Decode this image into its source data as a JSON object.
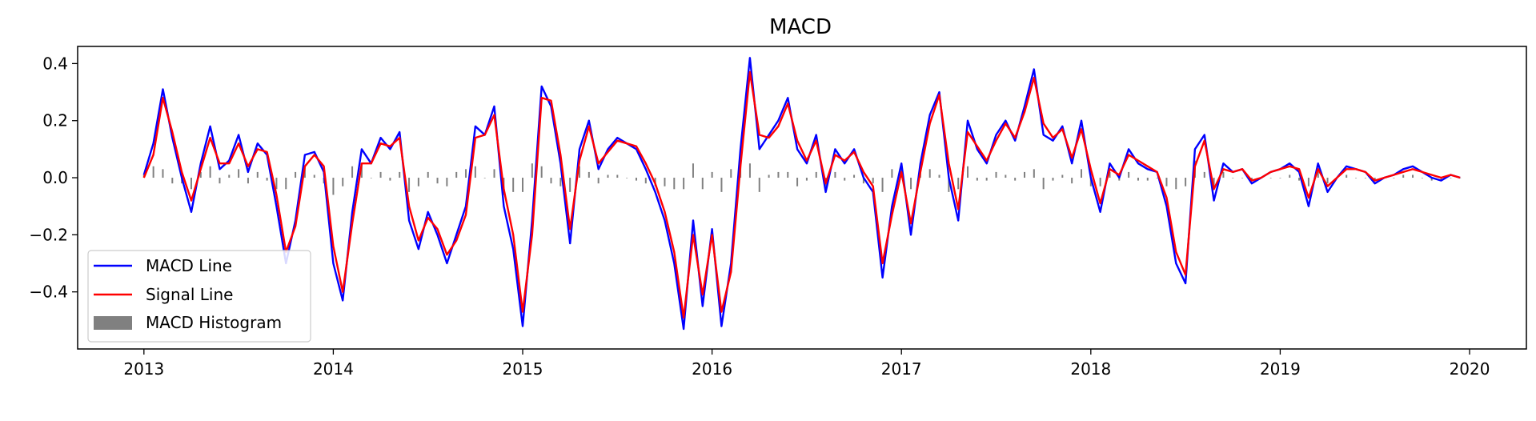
{
  "chart_data": {
    "type": "line",
    "title": "MACD",
    "xlabel": "",
    "ylabel": "",
    "xlim": [
      2012.65,
      2020.3
    ],
    "ylim": [
      -0.6,
      0.46
    ],
    "xticks": [
      2013,
      2014,
      2015,
      2016,
      2017,
      2018,
      2019,
      2020
    ],
    "xtick_labels": [
      "2013",
      "2014",
      "2015",
      "2016",
      "2017",
      "2018",
      "2019",
      "2020"
    ],
    "yticks": [
      -0.4,
      -0.2,
      0.0,
      0.2,
      0.4
    ],
    "ytick_labels": [
      "−0.4",
      "−0.2",
      "0.0",
      "0.2",
      "0.4"
    ],
    "grid": false,
    "legend": {
      "placement": "lower-left"
    },
    "x": [
      2013.0,
      2013.05,
      2013.1,
      2013.15,
      2013.2,
      2013.25,
      2013.3,
      2013.35,
      2013.4,
      2013.45,
      2013.5,
      2013.55,
      2013.6,
      2013.65,
      2013.7,
      2013.75,
      2013.8,
      2013.85,
      2013.9,
      2013.95,
      2014.0,
      2014.05,
      2014.1,
      2014.15,
      2014.2,
      2014.25,
      2014.3,
      2014.35,
      2014.4,
      2014.45,
      2014.5,
      2014.55,
      2014.6,
      2014.65,
      2014.7,
      2014.75,
      2014.8,
      2014.85,
      2014.9,
      2014.95,
      2015.0,
      2015.05,
      2015.1,
      2015.15,
      2015.2,
      2015.25,
      2015.3,
      2015.35,
      2015.4,
      2015.45,
      2015.5,
      2015.55,
      2015.6,
      2015.65,
      2015.7,
      2015.75,
      2015.8,
      2015.85,
      2015.9,
      2015.95,
      2016.0,
      2016.05,
      2016.1,
      2016.15,
      2016.2,
      2016.25,
      2016.3,
      2016.35,
      2016.4,
      2016.45,
      2016.5,
      2016.55,
      2016.6,
      2016.65,
      2016.7,
      2016.75,
      2016.8,
      2016.85,
      2016.9,
      2016.95,
      2017.0,
      2017.05,
      2017.1,
      2017.15,
      2017.2,
      2017.25,
      2017.3,
      2017.35,
      2017.4,
      2017.45,
      2017.5,
      2017.55,
      2017.6,
      2017.65,
      2017.7,
      2017.75,
      2017.8,
      2017.85,
      2017.9,
      2017.95,
      2018.0,
      2018.05,
      2018.1,
      2018.15,
      2018.2,
      2018.25,
      2018.3,
      2018.35,
      2018.4,
      2018.45,
      2018.5,
      2018.55,
      2018.6,
      2018.65,
      2018.7,
      2018.75,
      2018.8,
      2018.85,
      2018.9,
      2018.95,
      2019.0,
      2019.05,
      2019.1,
      2019.15,
      2019.2,
      2019.25,
      2019.3,
      2019.35,
      2019.4,
      2019.45,
      2019.5,
      2019.55,
      2019.6,
      2019.65,
      2019.7,
      2019.75,
      2019.8,
      2019.85,
      2019.9,
      2019.95
    ],
    "series": [
      {
        "name": "MACD Line",
        "color": "#0000ff",
        "values": [
          0.01,
          0.12,
          0.31,
          0.14,
          0.0,
          -0.12,
          0.05,
          0.18,
          0.03,
          0.06,
          0.15,
          0.02,
          0.12,
          0.08,
          -0.1,
          -0.3,
          -0.15,
          0.08,
          0.09,
          0.02,
          -0.3,
          -0.43,
          -0.12,
          0.1,
          0.05,
          0.14,
          0.1,
          0.16,
          -0.15,
          -0.25,
          -0.12,
          -0.2,
          -0.3,
          -0.2,
          -0.1,
          0.18,
          0.15,
          0.25,
          -0.1,
          -0.25,
          -0.52,
          -0.15,
          0.32,
          0.25,
          0.05,
          -0.23,
          0.1,
          0.2,
          0.03,
          0.1,
          0.14,
          0.12,
          0.1,
          0.03,
          -0.05,
          -0.15,
          -0.3,
          -0.53,
          -0.15,
          -0.45,
          -0.18,
          -0.52,
          -0.3,
          0.1,
          0.42,
          0.1,
          0.15,
          0.2,
          0.28,
          0.1,
          0.05,
          0.15,
          -0.05,
          0.1,
          0.05,
          0.1,
          0.0,
          -0.05,
          -0.35,
          -0.1,
          0.05,
          -0.2,
          0.05,
          0.22,
          0.3,
          0.0,
          -0.15,
          0.2,
          0.1,
          0.05,
          0.15,
          0.2,
          0.13,
          0.25,
          0.38,
          0.15,
          0.13,
          0.18,
          0.05,
          0.2,
          0.0,
          -0.12,
          0.05,
          0.0,
          0.1,
          0.05,
          0.03,
          0.02,
          -0.1,
          -0.3,
          -0.37,
          0.1,
          0.15,
          -0.08,
          0.05,
          0.02,
          0.03,
          -0.02,
          0.0,
          0.02,
          0.03,
          0.05,
          0.02,
          -0.1,
          0.05,
          -0.05,
          0.0,
          0.04,
          0.03,
          0.02,
          -0.02,
          0.0,
          0.01,
          0.03,
          0.04,
          0.02,
          0.0,
          -0.01,
          0.01,
          0.0
        ]
      },
      {
        "name": "Signal Line",
        "color": "#ff0000",
        "values": [
          0.0,
          0.08,
          0.28,
          0.16,
          0.02,
          -0.08,
          0.03,
          0.14,
          0.05,
          0.05,
          0.12,
          0.04,
          0.1,
          0.09,
          -0.06,
          -0.26,
          -0.17,
          0.04,
          0.08,
          0.04,
          -0.24,
          -0.4,
          -0.16,
          0.05,
          0.05,
          0.12,
          0.11,
          0.14,
          -0.1,
          -0.22,
          -0.14,
          -0.18,
          -0.27,
          -0.22,
          -0.13,
          0.14,
          0.15,
          0.22,
          -0.04,
          -0.2,
          -0.47,
          -0.2,
          0.28,
          0.27,
          0.08,
          -0.18,
          0.06,
          0.18,
          0.05,
          0.09,
          0.13,
          0.12,
          0.11,
          0.05,
          -0.02,
          -0.12,
          -0.26,
          -0.49,
          -0.2,
          -0.41,
          -0.2,
          -0.47,
          -0.33,
          0.04,
          0.37,
          0.15,
          0.14,
          0.18,
          0.26,
          0.13,
          0.06,
          0.13,
          -0.02,
          0.08,
          0.06,
          0.09,
          0.02,
          -0.03,
          -0.3,
          -0.13,
          0.02,
          -0.16,
          0.02,
          0.19,
          0.29,
          0.05,
          -0.11,
          0.16,
          0.11,
          0.06,
          0.13,
          0.19,
          0.14,
          0.23,
          0.35,
          0.19,
          0.14,
          0.17,
          0.07,
          0.17,
          0.03,
          -0.09,
          0.03,
          0.01,
          0.08,
          0.06,
          0.04,
          0.02,
          -0.07,
          -0.26,
          -0.34,
          0.04,
          0.13,
          -0.04,
          0.03,
          0.02,
          0.03,
          -0.01,
          0.0,
          0.02,
          0.03,
          0.04,
          0.03,
          -0.07,
          0.03,
          -0.03,
          0.0,
          0.03,
          0.03,
          0.02,
          -0.01,
          0.0,
          0.01,
          0.02,
          0.03,
          0.02,
          0.01,
          0.0,
          0.01,
          0.0
        ]
      },
      {
        "name": "MACD Histogram",
        "type": "bar",
        "color": "#808080",
        "values": [
          0.01,
          0.04,
          0.03,
          -0.02,
          -0.02,
          -0.04,
          0.02,
          0.04,
          -0.02,
          0.01,
          0.03,
          -0.02,
          0.02,
          -0.01,
          -0.04,
          -0.04,
          0.02,
          0.04,
          0.01,
          -0.02,
          -0.06,
          -0.03,
          0.04,
          0.05,
          0.0,
          0.02,
          -0.01,
          0.02,
          -0.05,
          -0.03,
          0.02,
          -0.02,
          -0.03,
          0.02,
          0.03,
          0.04,
          0.0,
          0.03,
          -0.06,
          -0.05,
          -0.05,
          0.05,
          0.04,
          -0.02,
          -0.03,
          -0.05,
          0.04,
          0.02,
          -0.02,
          0.01,
          0.01,
          0.0,
          -0.01,
          -0.02,
          -0.03,
          -0.03,
          -0.04,
          -0.04,
          0.05,
          -0.04,
          0.02,
          -0.05,
          0.03,
          0.06,
          0.05,
          -0.05,
          0.01,
          0.02,
          0.02,
          -0.03,
          -0.01,
          0.02,
          -0.03,
          0.02,
          -0.01,
          0.01,
          -0.02,
          -0.02,
          -0.05,
          0.03,
          0.03,
          -0.04,
          0.03,
          0.03,
          0.01,
          -0.05,
          -0.04,
          0.04,
          -0.01,
          -0.01,
          0.02,
          0.01,
          -0.01,
          0.02,
          0.03,
          -0.04,
          -0.01,
          0.01,
          -0.02,
          0.03,
          -0.03,
          -0.03,
          0.02,
          -0.01,
          0.02,
          -0.01,
          -0.01,
          0.0,
          -0.03,
          -0.04,
          -0.03,
          0.06,
          0.02,
          -0.04,
          0.02,
          0.0,
          0.0,
          -0.01,
          0.0,
          0.0,
          0.0,
          0.01,
          -0.01,
          -0.03,
          0.02,
          -0.02,
          0.0,
          0.01,
          0.0,
          0.0,
          -0.01,
          0.0,
          0.0,
          0.01,
          0.01,
          0.0,
          -0.01,
          -0.01,
          0.0,
          0.0
        ]
      }
    ]
  }
}
